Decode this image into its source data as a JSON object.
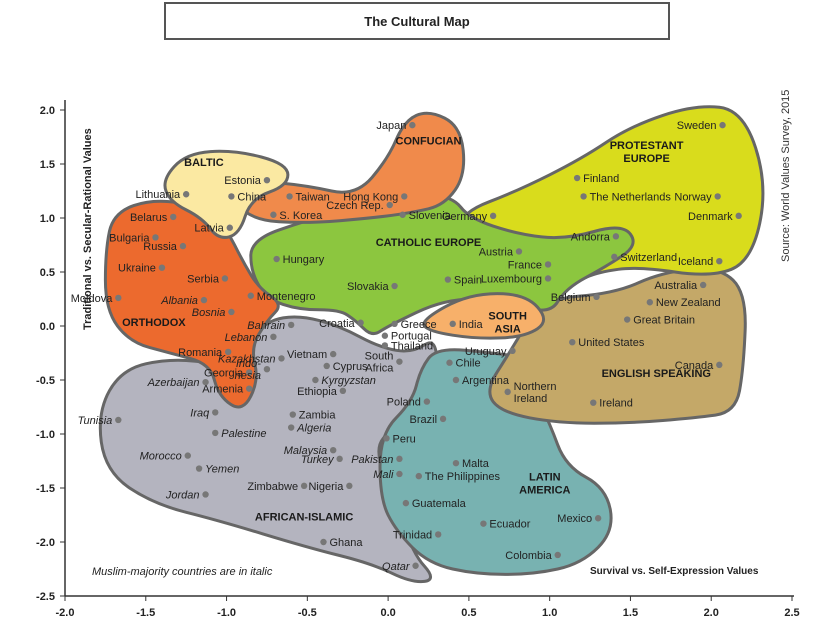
{
  "chart_data": {
    "type": "scatter",
    "title": "The Cultural Map",
    "xlabel": "Survival vs. Self-Expression Values",
    "ylabel": "Traditional vs. Secular-Rational Values",
    "source": "Source: World Values Survey, 2015",
    "note": "Muslim-majority countries are in italic",
    "xlim": [
      -2.0,
      2.5
    ],
    "ylim": [
      -2.5,
      2.0
    ],
    "xticks": [
      "-2.0",
      "-1.5",
      "-1.0",
      "-0.5",
      "0.0",
      "0.5",
      "1.0",
      "1.5",
      "2.0",
      "2.5"
    ],
    "yticks": [
      "2.0",
      "1.5",
      "1.0",
      "0.5",
      "0.0",
      "-0.5",
      "-1.0",
      "-1.5",
      "-2.0",
      "-2.5"
    ],
    "grid": false,
    "colors": {
      "Confucian": "#f08a4b",
      "Baltic": "#fbe9a2",
      "Protestant Europe": "#d9dc1c",
      "Catholic Europe": "#8cc63f",
      "Orthodox": "#ec6a2e",
      "South Asia": "#f7b06a",
      "English Speaking": "#c4a868",
      "Latin America": "#78b2b1",
      "African-Islamic": "#b4b4bf",
      "outline": "#666666",
      "point": "#777777"
    },
    "regions": [
      {
        "name": "CONFUCIAN",
        "x": 0.25,
        "y": 1.68
      },
      {
        "name": "BALTIC",
        "x": -1.14,
        "y": 1.48
      },
      {
        "name": "PROTESTANT\nEUROPE",
        "x": 1.6,
        "y": 1.64
      },
      {
        "name": "CATHOLIC EUROPE",
        "x": 0.25,
        "y": 0.74
      },
      {
        "name": "ORTHODOX",
        "x": -1.45,
        "y": 0.0
      },
      {
        "name": "SOUTH\nASIA",
        "x": 0.74,
        "y": 0.06
      },
      {
        "name": "ENGLISH SPEAKING",
        "x": 1.66,
        "y": -0.47
      },
      {
        "name": "LATIN\nAMERICA",
        "x": 0.97,
        "y": -1.43
      },
      {
        "name": "AFRICAN-ISLAMIC",
        "x": -0.52,
        "y": -1.8
      }
    ],
    "points": [
      {
        "name": "Japan",
        "x": 0.15,
        "y": 1.86,
        "italic": false
      },
      {
        "name": "Hong Kong",
        "x": 0.1,
        "y": 1.2,
        "italic": false
      },
      {
        "name": "China",
        "x": -0.97,
        "y": 1.2,
        "italic": false
      },
      {
        "name": "Taiwan",
        "x": -0.61,
        "y": 1.2,
        "italic": false
      },
      {
        "name": "S. Korea",
        "x": -0.71,
        "y": 1.03,
        "italic": false
      },
      {
        "name": "Estonia",
        "x": -0.75,
        "y": 1.35,
        "italic": false
      },
      {
        "name": "Lithuania",
        "x": -1.25,
        "y": 1.22,
        "italic": false
      },
      {
        "name": "Latvia",
        "x": -0.98,
        "y": 0.91,
        "italic": false
      },
      {
        "name": "Sweden",
        "x": 2.07,
        "y": 1.86,
        "italic": false
      },
      {
        "name": "Finland",
        "x": 1.17,
        "y": 1.37,
        "italic": false
      },
      {
        "name": "The Netherlands",
        "x": 1.21,
        "y": 1.2,
        "italic": false
      },
      {
        "name": "Norway",
        "x": 2.04,
        "y": 1.2,
        "italic": false
      },
      {
        "name": "Denmark",
        "x": 2.17,
        "y": 1.02,
        "italic": false
      },
      {
        "name": "Germany",
        "x": 0.65,
        "y": 1.02,
        "italic": false
      },
      {
        "name": "Iceland",
        "x": 2.05,
        "y": 0.6,
        "italic": false
      },
      {
        "name": "Switzerland",
        "x": 1.4,
        "y": 0.64,
        "italic": false
      },
      {
        "name": "Andorra",
        "x": 1.41,
        "y": 0.83,
        "italic": false
      },
      {
        "name": "Czech Rep.",
        "x": 0.01,
        "y": 1.12,
        "italic": false
      },
      {
        "name": "Slovenia",
        "x": 0.09,
        "y": 1.03,
        "italic": false
      },
      {
        "name": "Austria",
        "x": 0.81,
        "y": 0.69,
        "italic": false
      },
      {
        "name": "France",
        "x": 0.99,
        "y": 0.57,
        "italic": false
      },
      {
        "name": "Luxembourg",
        "x": 0.99,
        "y": 0.44,
        "italic": false
      },
      {
        "name": "Belgium",
        "x": 1.29,
        "y": 0.27,
        "italic": false
      },
      {
        "name": "Hungary",
        "x": -0.69,
        "y": 0.62,
        "italic": false
      },
      {
        "name": "Slovakia",
        "x": 0.04,
        "y": 0.37,
        "italic": false
      },
      {
        "name": "Spain",
        "x": 0.37,
        "y": 0.43,
        "italic": false
      },
      {
        "name": "Croatia",
        "x": -0.17,
        "y": 0.03,
        "italic": false
      },
      {
        "name": "Greece",
        "x": 0.04,
        "y": 0.02,
        "italic": false
      },
      {
        "name": "Portugal",
        "x": -0.02,
        "y": -0.09,
        "italic": false
      },
      {
        "name": "Belarus",
        "x": -1.33,
        "y": 1.01,
        "italic": false
      },
      {
        "name": "Bulgaria",
        "x": -1.44,
        "y": 0.82,
        "italic": false
      },
      {
        "name": "Russia",
        "x": -1.27,
        "y": 0.74,
        "italic": false
      },
      {
        "name": "Ukraine",
        "x": -1.4,
        "y": 0.54,
        "italic": false
      },
      {
        "name": "Moldova",
        "x": -1.67,
        "y": 0.26,
        "italic": false
      },
      {
        "name": "Serbia",
        "x": -1.01,
        "y": 0.44,
        "italic": false
      },
      {
        "name": "Albania",
        "x": -1.14,
        "y": 0.24,
        "italic": true
      },
      {
        "name": "Montenegro",
        "x": -0.85,
        "y": 0.28,
        "italic": false
      },
      {
        "name": "Bosnia",
        "x": -0.97,
        "y": 0.13,
        "italic": true
      },
      {
        "name": "Romania",
        "x": -0.99,
        "y": -0.24,
        "italic": false
      },
      {
        "name": "Georgia",
        "x": -0.86,
        "y": -0.43,
        "italic": false
      },
      {
        "name": "Armenia",
        "x": -0.86,
        "y": -0.58,
        "italic": false
      },
      {
        "name": "Bahrain",
        "x": -0.6,
        "y": 0.01,
        "italic": true
      },
      {
        "name": "Lebanon",
        "x": -0.71,
        "y": -0.1,
        "italic": true
      },
      {
        "name": "Kazakhstan",
        "x": -0.66,
        "y": -0.3,
        "italic": true
      },
      {
        "name": "Indonesia",
        "x": -0.75,
        "y": -0.4,
        "italic": true
      },
      {
        "name": "Kyrgyzstan",
        "x": -0.45,
        "y": -0.5,
        "italic": true
      },
      {
        "name": "Vietnam",
        "x": -0.34,
        "y": -0.26,
        "italic": false
      },
      {
        "name": "Thailand",
        "x": -0.02,
        "y": -0.18,
        "italic": false
      },
      {
        "name": "Cyprus",
        "x": -0.38,
        "y": -0.37,
        "italic": false
      },
      {
        "name": "India",
        "x": 0.4,
        "y": 0.02,
        "italic": false
      },
      {
        "name": "South Africa",
        "x": 0.07,
        "y": -0.33,
        "italic": false
      },
      {
        "name": "Ethiopia",
        "x": -0.28,
        "y": -0.6,
        "italic": false
      },
      {
        "name": "Zambia",
        "x": -0.59,
        "y": -0.82,
        "italic": false
      },
      {
        "name": "Algeria",
        "x": -0.6,
        "y": -0.94,
        "italic": true
      },
      {
        "name": "Malaysia",
        "x": -0.34,
        "y": -1.15,
        "italic": true
      },
      {
        "name": "Turkey",
        "x": -0.3,
        "y": -1.23,
        "italic": true
      },
      {
        "name": "Pakistan",
        "x": 0.07,
        "y": -1.23,
        "italic": true
      },
      {
        "name": "Mali",
        "x": 0.07,
        "y": -1.37,
        "italic": true
      },
      {
        "name": "Nigeria",
        "x": -0.24,
        "y": -1.48,
        "italic": false
      },
      {
        "name": "Zimbabwe",
        "x": -0.52,
        "y": -1.48,
        "italic": false
      },
      {
        "name": "Ghana",
        "x": -0.4,
        "y": -2.0,
        "italic": false
      },
      {
        "name": "Qatar",
        "x": 0.17,
        "y": -2.22,
        "italic": true
      },
      {
        "name": "Azerbaijan",
        "x": -1.13,
        "y": -0.52,
        "italic": true
      },
      {
        "name": "Iraq",
        "x": -1.07,
        "y": -0.8,
        "italic": true
      },
      {
        "name": "Tunisia",
        "x": -1.67,
        "y": -0.87,
        "italic": true
      },
      {
        "name": "Palestine",
        "x": -1.07,
        "y": -0.99,
        "italic": true
      },
      {
        "name": "Morocco",
        "x": -1.24,
        "y": -1.2,
        "italic": true
      },
      {
        "name": "Yemen",
        "x": -1.17,
        "y": -1.32,
        "italic": true
      },
      {
        "name": "Jordan",
        "x": -1.13,
        "y": -1.56,
        "italic": true
      },
      {
        "name": "Uruguay",
        "x": 0.77,
        "y": -0.23,
        "italic": false
      },
      {
        "name": "Chile",
        "x": 0.38,
        "y": -0.34,
        "italic": false
      },
      {
        "name": "Argentina",
        "x": 0.42,
        "y": -0.5,
        "italic": false
      },
      {
        "name": "Poland",
        "x": 0.24,
        "y": -0.7,
        "italic": false
      },
      {
        "name": "Brazil",
        "x": 0.34,
        "y": -0.86,
        "italic": false
      },
      {
        "name": "Peru",
        "x": -0.01,
        "y": -1.04,
        "italic": false
      },
      {
        "name": "Malta",
        "x": 0.42,
        "y": -1.27,
        "italic": false
      },
      {
        "name": "The Philippines",
        "x": 0.19,
        "y": -1.39,
        "italic": false
      },
      {
        "name": "Guatemala",
        "x": 0.11,
        "y": -1.64,
        "italic": false
      },
      {
        "name": "Ecuador",
        "x": 0.59,
        "y": -1.83,
        "italic": false
      },
      {
        "name": "Trinidad",
        "x": 0.31,
        "y": -1.93,
        "italic": false
      },
      {
        "name": "Colombia",
        "x": 1.05,
        "y": -2.12,
        "italic": false
      },
      {
        "name": "Mexico",
        "x": 1.3,
        "y": -1.78,
        "italic": false
      },
      {
        "name": "Australia",
        "x": 1.95,
        "y": 0.38,
        "italic": false
      },
      {
        "name": "New Zealand",
        "x": 1.62,
        "y": 0.22,
        "italic": false
      },
      {
        "name": "Great Britain",
        "x": 1.48,
        "y": 0.06,
        "italic": false
      },
      {
        "name": "United States",
        "x": 1.14,
        "y": -0.15,
        "italic": false
      },
      {
        "name": "Canada",
        "x": 2.05,
        "y": -0.36,
        "italic": false
      },
      {
        "name": "Northern Ireland",
        "x": 0.74,
        "y": -0.61,
        "italic": false
      },
      {
        "name": "Ireland",
        "x": 1.27,
        "y": -0.71,
        "italic": false
      }
    ]
  }
}
